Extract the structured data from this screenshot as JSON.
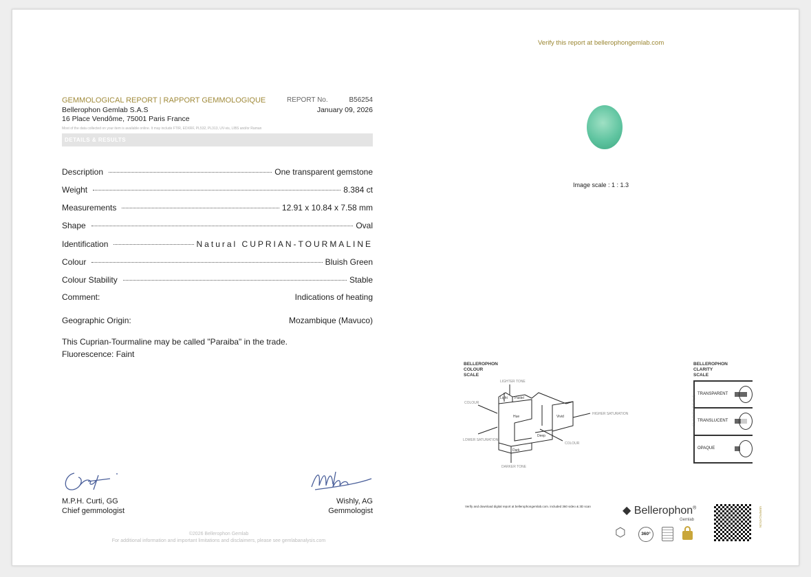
{
  "header": {
    "title": "GEMMOLOGICAL REPORT | RAPPORT GEMMOLOGIQUE",
    "report_no_label": "REPORT No.",
    "report_no": "B56254",
    "company": "Bellerophon Gemlab S.A.S",
    "date": "January 09, 2026",
    "address": "16 Place Vendôme, 75001 Paris France",
    "data_note": "Most of the data collected on your item is available online. It may include FTIR, EDXRF, PL532, PL313, UV-vis, LIBS and/or Raman",
    "section": "DETAILS & RESULTS"
  },
  "details": [
    {
      "label": "Description",
      "value": "One transparent gemstone"
    },
    {
      "label": "Weight",
      "value": "8.384 ct"
    },
    {
      "label": "Measurements",
      "value": "12.91 x 10.84 x 7.58 mm"
    },
    {
      "label": "Shape",
      "value": "Oval"
    },
    {
      "label": "Identification",
      "value": "Natural CUPRIAN-TOURMALINE"
    },
    {
      "label": "Colour",
      "value": "Bluish Green"
    },
    {
      "label": "Colour Stability",
      "value": "Stable"
    }
  ],
  "comment": {
    "label": "Comment:",
    "value": "Indications of heating"
  },
  "origin": {
    "label": "Geographic Origin:",
    "value": "Mozambique (Mavuco)"
  },
  "remarks": [
    "This Cuprian-Tourmaline may be called \"Paraiba\" in the trade.",
    "Fluorescence: Faint"
  ],
  "signatures": [
    {
      "name": "M.P.H. Curti, GG",
      "role": "Chief gemmologist"
    },
    {
      "name": "Wishly, AG",
      "role": "Gemmologist"
    }
  ],
  "footer": {
    "copyright": "©2026 Bellerophon Gemlab",
    "disclaimer": "For additional information and important limitations and disclaimers, please see gemlabanalysis.com"
  },
  "right": {
    "verify": "Verify this report at bellerophongemlab.com",
    "image_scale": "Image scale : 1 : 1.3",
    "stone_color": "#5fc4a0",
    "colour_scale": {
      "title": [
        "BELLEROPHON",
        "COLOUR",
        "SCALE"
      ],
      "labels": {
        "lighter": "LIGHTER TONE",
        "light": "Light",
        "pastel": "Pastel",
        "colour": "COLOUR",
        "vivid": "Vivid",
        "higher": "HIGHER SATURATION",
        "lower": "LOWER SATURATION",
        "hue": "Hue",
        "deep": "Deep",
        "dark": "Dark",
        "darker": "DARKER TONE",
        "colour2": "COLOUR"
      }
    },
    "clarity_scale": {
      "title": [
        "BELLEROPHON",
        "CLARITY",
        "SCALE"
      ],
      "axis": "CLARITY SCALE",
      "levels": [
        "TRANSPARENT",
        "TRANSLUCENT",
        "OPAQUE"
      ]
    },
    "digital_note": "Verify and download digital report at bellerophongemlab.com. included 360 video & 3D scan",
    "brand": "Bellerophon",
    "brand_sub": "Gemlab",
    "badge_360": "360°",
    "verification": "VERIFICATION"
  }
}
